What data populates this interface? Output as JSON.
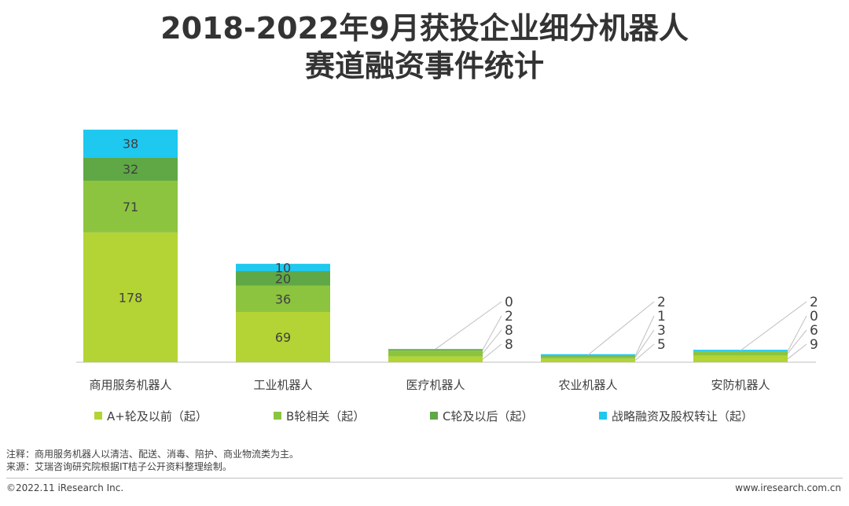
{
  "title_line1": "2018-2022年9月获投企业细分机器人",
  "title_line2": "赛道融资事件统计",
  "chart_data": {
    "type": "bar",
    "stacked": true,
    "categories": [
      "商用服务机器人",
      "工业机器人",
      "医疗机器人",
      "农业机器人",
      "安防机器人"
    ],
    "series": [
      {
        "name": "A+轮及以前（起）",
        "color": "#b4d334",
        "values": [
          178,
          69,
          8,
          5,
          9
        ]
      },
      {
        "name": "B轮相关（起）",
        "color": "#8cc43f",
        "values": [
          71,
          36,
          8,
          3,
          6
        ]
      },
      {
        "name": "C轮及以后（起）",
        "color": "#5fa845",
        "values": [
          32,
          20,
          2,
          1,
          0
        ]
      },
      {
        "name": "战略融资及股权转让（起）",
        "color": "#1ec8ef",
        "values": [
          38,
          10,
          0,
          2,
          2
        ]
      }
    ],
    "legend": "bottom",
    "grid": false
  },
  "notes": {
    "line1": "注释：商用服务机器人以清洁、配送、消毒、陪护、商业物流类为主。",
    "line2": "来源：艾瑞咨询研究院根据IT桔子公开资料整理绘制。"
  },
  "footer": {
    "left": "©2022.11 iResearch Inc.",
    "right": "www.iresearch.com.cn"
  }
}
